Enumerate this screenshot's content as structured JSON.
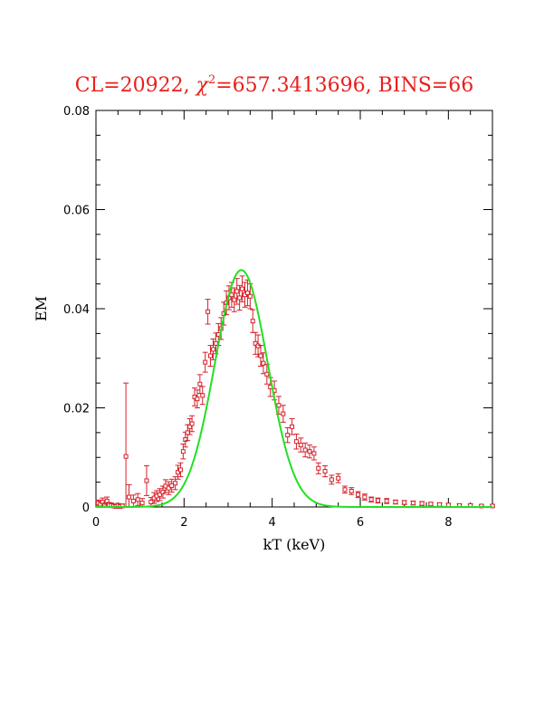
{
  "chart_data": {
    "type": "scatter",
    "title": "CL=20922, χ²=657.3413696, BINS=66",
    "title_parts": {
      "pre": "CL=20922, ",
      "chi": "χ",
      "sup": "2",
      "post": "=657.3413696, BINS=66"
    },
    "xlabel": "kT (keV)",
    "ylabel": "EM",
    "xlim": [
      0,
      9
    ],
    "ylim": [
      0,
      0.08
    ],
    "x_ticks": [
      0,
      2,
      4,
      6,
      8
    ],
    "x_tick_labels": [
      "0",
      "2",
      "4",
      "6",
      "8"
    ],
    "y_ticks": [
      0,
      0.02,
      0.04,
      0.06,
      0.08
    ],
    "y_tick_labels": [
      "0",
      "0.02",
      "0.04",
      "0.06",
      "0.08"
    ],
    "grid": false,
    "colors": {
      "title": "#e8201c",
      "data": "#d4202a",
      "model": "#22e022",
      "axes": "#000000"
    },
    "series": [
      {
        "type": "scatter_errorbar",
        "x": [
          0.05,
          0.1,
          0.15,
          0.2,
          0.25,
          0.3,
          0.35,
          0.4,
          0.45,
          0.5,
          0.55,
          0.6,
          0.68,
          0.75,
          0.85,
          0.95,
          1.05,
          1.15,
          1.25,
          1.32,
          1.38,
          1.45,
          1.52,
          1.58,
          1.65,
          1.72,
          1.8,
          1.86,
          1.92,
          1.98,
          2.03,
          2.08,
          2.13,
          2.18,
          2.24,
          2.3,
          2.36,
          2.42,
          2.48,
          2.54,
          2.6,
          2.66,
          2.72,
          2.78,
          2.84,
          2.9,
          2.96,
          3.02,
          3.08,
          3.14,
          3.2,
          3.26,
          3.32,
          3.38,
          3.44,
          3.5,
          3.56,
          3.62,
          3.68,
          3.74,
          3.8,
          3.88,
          3.96,
          4.05,
          4.15,
          4.25,
          4.35,
          4.45,
          4.55,
          4.65,
          4.75,
          4.85,
          4.95,
          5.05,
          5.2,
          5.35,
          5.5,
          5.65,
          5.8,
          5.95,
          6.1,
          6.25,
          6.4,
          6.6,
          6.8,
          7.0,
          7.2,
          7.4,
          7.6,
          7.8,
          8.0,
          8.25,
          8.5,
          8.75,
          9.0
        ],
        "y": [
          0.0008,
          0.0005,
          0.001,
          0.0003,
          0.0012,
          0.0004,
          0.0003,
          0.0002,
          0.0001,
          0.0003,
          0.0001,
          0.0002,
          0.0102,
          0.002,
          0.0012,
          0.0015,
          0.0008,
          0.0053,
          0.001,
          0.0018,
          0.0022,
          0.0025,
          0.003,
          0.0042,
          0.0038,
          0.0043,
          0.0048,
          0.007,
          0.0075,
          0.0112,
          0.0136,
          0.015,
          0.0162,
          0.0168,
          0.0222,
          0.0218,
          0.0248,
          0.0225,
          0.0292,
          0.0394,
          0.0305,
          0.0318,
          0.033,
          0.0348,
          0.036,
          0.039,
          0.0412,
          0.0422,
          0.0428,
          0.0418,
          0.0435,
          0.0422,
          0.044,
          0.0428,
          0.0432,
          0.0425,
          0.0375,
          0.033,
          0.0325,
          0.0305,
          0.029,
          0.0268,
          0.0242,
          0.0235,
          0.0205,
          0.0188,
          0.0145,
          0.0162,
          0.0132,
          0.0125,
          0.0115,
          0.0112,
          0.0108,
          0.0078,
          0.0072,
          0.0055,
          0.0058,
          0.0035,
          0.0032,
          0.0025,
          0.002,
          0.0015,
          0.0013,
          0.0012,
          0.001,
          0.0009,
          0.0008,
          0.0007,
          0.0006,
          0.0005,
          0.0004,
          0.0003,
          0.0003,
          0.0002,
          0.0002
        ],
        "err": [
          0.0006,
          0.0006,
          0.0008,
          0.0006,
          0.0008,
          0.0005,
          0.0005,
          0.0004,
          0.0003,
          0.0004,
          0.0003,
          0.0004,
          0.0148,
          0.0025,
          0.0012,
          0.0012,
          0.0009,
          0.003,
          0.0009,
          0.0011,
          0.0011,
          0.0012,
          0.0012,
          0.0013,
          0.0013,
          0.0013,
          0.0013,
          0.0014,
          0.0014,
          0.0015,
          0.0015,
          0.0016,
          0.0016,
          0.0016,
          0.0018,
          0.0018,
          0.0019,
          0.0018,
          0.002,
          0.0025,
          0.0021,
          0.0021,
          0.0021,
          0.0022,
          0.0022,
          0.0023,
          0.0024,
          0.0024,
          0.0025,
          0.0024,
          0.0026,
          0.0025,
          0.0026,
          0.0025,
          0.0026,
          0.0025,
          0.0023,
          0.0022,
          0.0022,
          0.0021,
          0.0021,
          0.002,
          0.0019,
          0.0019,
          0.0018,
          0.0017,
          0.0015,
          0.0016,
          0.0015,
          0.0014,
          0.0014,
          0.0013,
          0.0013,
          0.0011,
          0.0011,
          0.0009,
          0.0009,
          0.0007,
          0.0007,
          0.0006,
          0.0006,
          0.0005,
          0.0005,
          0.0005,
          0.0004,
          0.0004,
          0.0004,
          0.0004,
          0.0003,
          0.0003,
          0.0003,
          0.0003,
          0.0003,
          0.0002,
          0.0002
        ]
      },
      {
        "type": "gaussian_model",
        "amplitude": 0.0478,
        "center": 3.3,
        "sigma": 0.6,
        "x_range": [
          0,
          9
        ]
      }
    ]
  }
}
